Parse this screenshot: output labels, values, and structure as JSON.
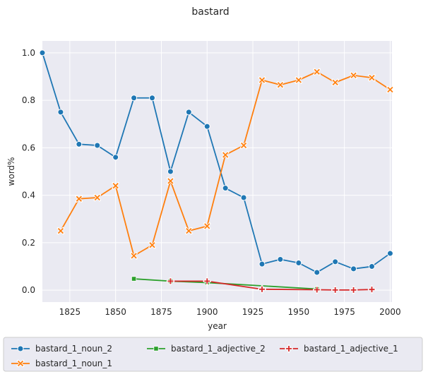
{
  "chart_data": {
    "type": "line",
    "title": "bastard",
    "xlabel": "year",
    "ylabel": "word%",
    "xlim": [
      1810,
      2001
    ],
    "ylim": [
      -0.05,
      1.05
    ],
    "xticks": [
      1825,
      1850,
      1875,
      1900,
      1925,
      1950,
      1975,
      2000
    ],
    "yticks": [
      0.0,
      0.2,
      0.4,
      0.6,
      0.8,
      1.0
    ],
    "xtick_labels": [
      "1825",
      "1850",
      "1875",
      "1900",
      "1925",
      "1950",
      "1975",
      "2000"
    ],
    "ytick_labels": [
      "0.0",
      "0.2",
      "0.4",
      "0.6",
      "0.8",
      "1.0"
    ],
    "grid": true,
    "legend_position": "bottom",
    "series": [
      {
        "name": "bastard_1_noun_2",
        "color": "#1f77b4",
        "marker": "circle",
        "points": [
          [
            1810,
            1.0
          ],
          [
            1820,
            0.75
          ],
          [
            1830,
            0.615
          ],
          [
            1840,
            0.61
          ],
          [
            1850,
            0.56
          ],
          [
            1860,
            0.81
          ],
          [
            1870,
            0.81
          ],
          [
            1880,
            0.5
          ],
          [
            1890,
            0.75
          ],
          [
            1900,
            0.69
          ],
          [
            1910,
            0.43
          ],
          [
            1920,
            0.39
          ],
          [
            1930,
            0.11
          ],
          [
            1940,
            0.13
          ],
          [
            1950,
            0.115
          ],
          [
            1960,
            0.075
          ],
          [
            1970,
            0.12
          ],
          [
            1980,
            0.09
          ],
          [
            1990,
            0.1
          ],
          [
            2000,
            0.155
          ]
        ]
      },
      {
        "name": "bastard_1_noun_1",
        "color": "#ff7f0e",
        "marker": "x",
        "points": [
          [
            1820,
            0.25
          ],
          [
            1830,
            0.385
          ],
          [
            1840,
            0.39
          ],
          [
            1850,
            0.44
          ],
          [
            1860,
            0.145
          ],
          [
            1870,
            0.19
          ],
          [
            1880,
            0.46
          ],
          [
            1890,
            0.25
          ],
          [
            1900,
            0.27
          ],
          [
            1910,
            0.57
          ],
          [
            1920,
            0.61
          ],
          [
            1930,
            0.885
          ],
          [
            1940,
            0.865
          ],
          [
            1950,
            0.885
          ],
          [
            1960,
            0.92
          ],
          [
            1970,
            0.875
          ],
          [
            1980,
            0.905
          ],
          [
            1990,
            0.895
          ],
          [
            2000,
            0.845
          ]
        ]
      },
      {
        "name": "bastard_1_adjective_2",
        "color": "#2ca02c",
        "marker": "square",
        "points": [
          [
            1860,
            0.048
          ],
          [
            1880,
            0.038
          ],
          [
            1900,
            0.032
          ],
          [
            1960,
            0.005
          ]
        ]
      },
      {
        "name": "bastard_1_adjective_1",
        "color": "#d62728",
        "marker": "plus",
        "points": [
          [
            1880,
            0.038
          ],
          [
            1900,
            0.038
          ],
          [
            1930,
            0.004
          ],
          [
            1960,
            0.002
          ],
          [
            1970,
            0.001
          ],
          [
            1980,
            0.001
          ],
          [
            1990,
            0.003
          ]
        ]
      }
    ]
  }
}
